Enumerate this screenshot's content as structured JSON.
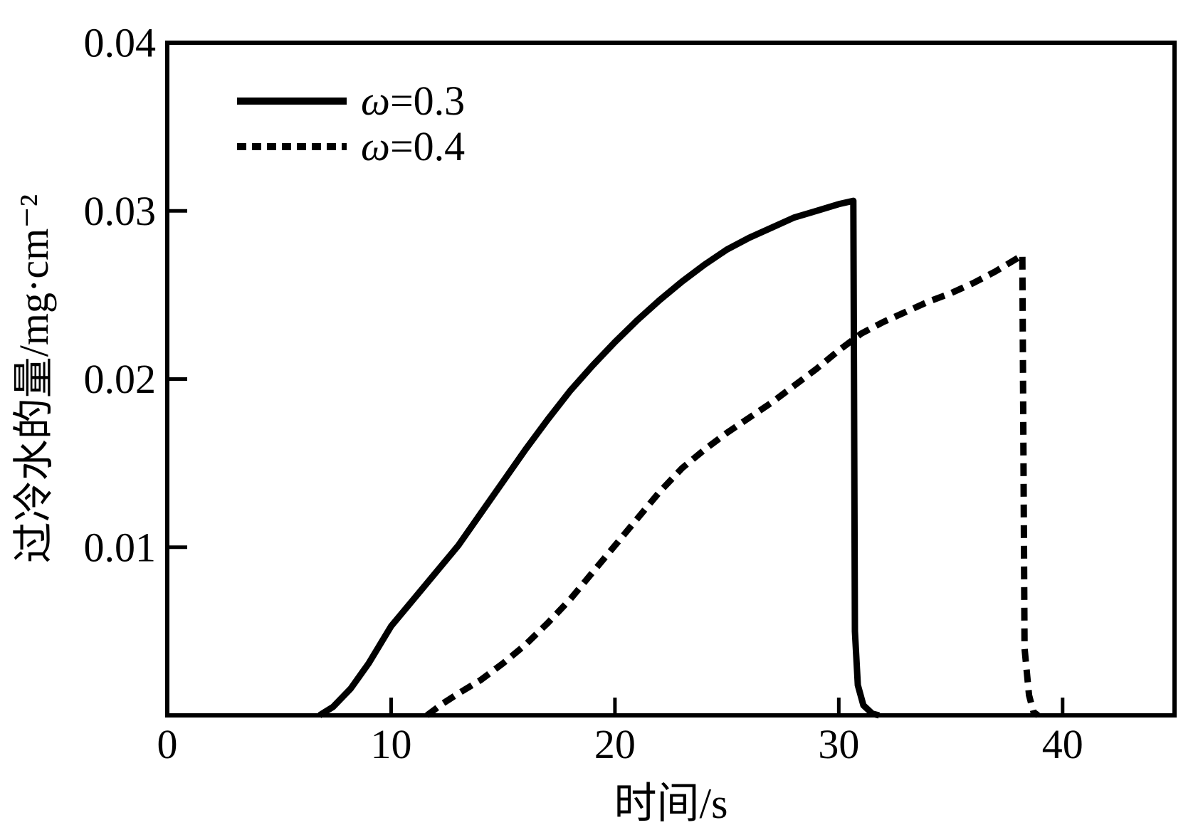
{
  "chart_data": {
    "type": "line",
    "title": "",
    "xlabel": "时间/s",
    "ylabel": "过冷水的量/mg·cm⁻²",
    "xlim": [
      0,
      45
    ],
    "ylim": [
      0,
      0.04
    ],
    "grid": false,
    "legend_position": "upper-left-inside",
    "axis_color": "#000000",
    "background_color": "#ffffff",
    "x_ticks": {
      "values": [
        0,
        10,
        20,
        30,
        40
      ],
      "labels": [
        "0",
        "10",
        "20",
        "30",
        "40"
      ],
      "marks": [
        10,
        20,
        30,
        40
      ]
    },
    "y_ticks": {
      "values": [
        0.01,
        0.02,
        0.03,
        0.04
      ],
      "labels": [
        "0.01",
        "0.02",
        "0.03",
        "0.04"
      ],
      "marks": [
        0.01,
        0.02,
        0.03
      ]
    },
    "series": [
      {
        "name": "ω=0.3",
        "line_style": "solid",
        "color": "#000000",
        "points": [
          [
            6.8,
            0
          ],
          [
            7.4,
            0.0005
          ],
          [
            8.2,
            0.0016
          ],
          [
            9.0,
            0.0031
          ],
          [
            10,
            0.0053
          ],
          [
            11,
            0.0069
          ],
          [
            12,
            0.0085
          ],
          [
            13,
            0.0101
          ],
          [
            14,
            0.012
          ],
          [
            15,
            0.0139
          ],
          [
            16,
            0.0158
          ],
          [
            17,
            0.0176
          ],
          [
            18,
            0.0193
          ],
          [
            19,
            0.0208
          ],
          [
            20,
            0.0222
          ],
          [
            21,
            0.0235
          ],
          [
            22,
            0.0247
          ],
          [
            23,
            0.0258
          ],
          [
            24,
            0.0268
          ],
          [
            25,
            0.0277
          ],
          [
            26,
            0.0284
          ],
          [
            27,
            0.029
          ],
          [
            28,
            0.0296
          ],
          [
            29,
            0.03
          ],
          [
            30,
            0.0304
          ],
          [
            30.65,
            0.0306
          ],
          [
            30.72,
            0.005
          ],
          [
            30.85,
            0.0018
          ],
          [
            31.1,
            0.0006
          ],
          [
            31.5,
            0.0001
          ],
          [
            31.8,
            0
          ]
        ]
      },
      {
        "name": "ω=0.4",
        "line_style": "dashed",
        "color": "#000000",
        "points": [
          [
            11.6,
            0
          ],
          [
            12.3,
            0.0007
          ],
          [
            13,
            0.0013
          ],
          [
            14,
            0.0021
          ],
          [
            15,
            0.0031
          ],
          [
            16,
            0.0042
          ],
          [
            17,
            0.0055
          ],
          [
            18,
            0.0069
          ],
          [
            19,
            0.0085
          ],
          [
            20,
            0.0101
          ],
          [
            21,
            0.0117
          ],
          [
            22,
            0.0133
          ],
          [
            23,
            0.0147
          ],
          [
            24,
            0.0158
          ],
          [
            25,
            0.0168
          ],
          [
            26,
            0.0177
          ],
          [
            27,
            0.0186
          ],
          [
            28,
            0.0196
          ],
          [
            29,
            0.0206
          ],
          [
            30,
            0.0217
          ],
          [
            31,
            0.0227
          ],
          [
            32,
            0.0234
          ],
          [
            33,
            0.024
          ],
          [
            34,
            0.0246
          ],
          [
            35,
            0.0251
          ],
          [
            36,
            0.0257
          ],
          [
            37,
            0.0264
          ],
          [
            38,
            0.0272
          ],
          [
            38.2,
            0.0274
          ],
          [
            38.3,
            0.004
          ],
          [
            38.5,
            0.0012
          ],
          [
            38.7,
            0.0002
          ],
          [
            38.9,
            0
          ]
        ]
      }
    ]
  }
}
